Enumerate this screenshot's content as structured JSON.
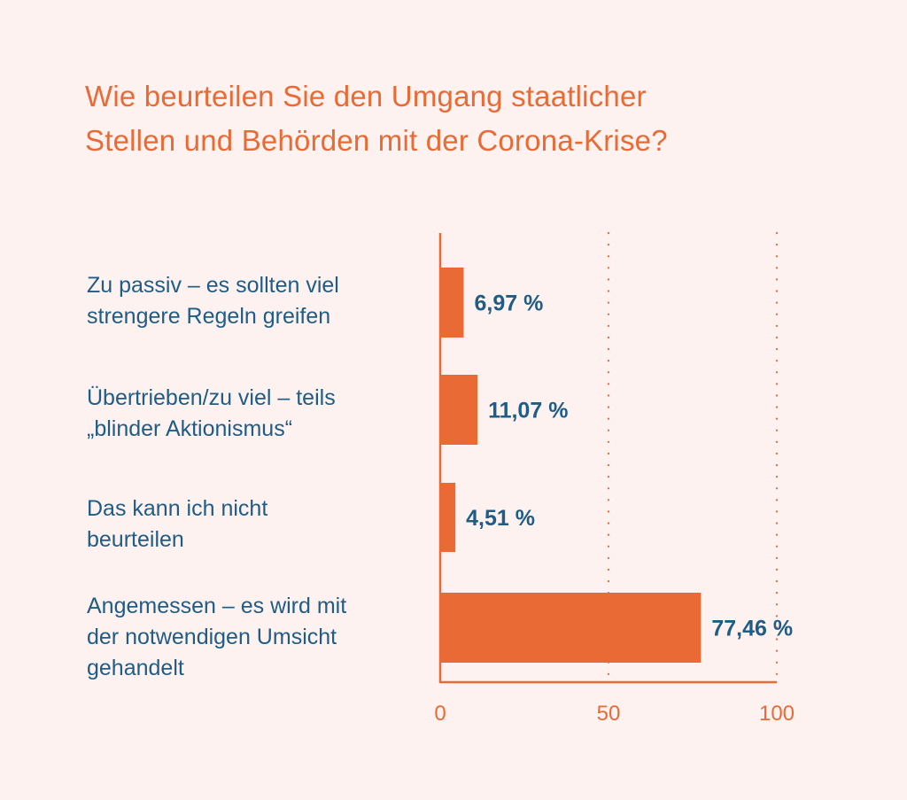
{
  "colors": {
    "background": "#fdf2ef",
    "accent": "#e96a35",
    "text_blue": "#1f5c86"
  },
  "title": {
    "line1": "Wie beurteilen Sie den Umgang staatlicher",
    "line2": "Stellen und Behörden mit der Corona-Krise?"
  },
  "chart_data": {
    "type": "bar",
    "orientation": "horizontal",
    "title": "Wie beurteilen Sie den Umgang staatlicher Stellen und Behörden mit der Corona-Krise?",
    "categories": [
      [
        "Zu passiv – es sollten viel",
        "strengere Regeln greifen"
      ],
      [
        "Übertrieben/zu viel – teils",
        "„blinder Aktionismus“"
      ],
      [
        "Das kann ich nicht",
        "beurteilen"
      ],
      [
        "Angemessen – es wird mit",
        "der notwendigen Umsicht",
        "gehandelt"
      ]
    ],
    "values": [
      6.97,
      11.07,
      4.51,
      77.46
    ],
    "value_labels": [
      "6,97 %",
      "11,07 %",
      "4,51 %",
      "77,46 %"
    ],
    "xlim": [
      0,
      100
    ],
    "x_ticks": [
      0,
      50,
      100
    ],
    "x_tick_labels": [
      "0",
      "50",
      "100"
    ],
    "gridlines": "dotted at 50 and 100",
    "legend": "none"
  }
}
